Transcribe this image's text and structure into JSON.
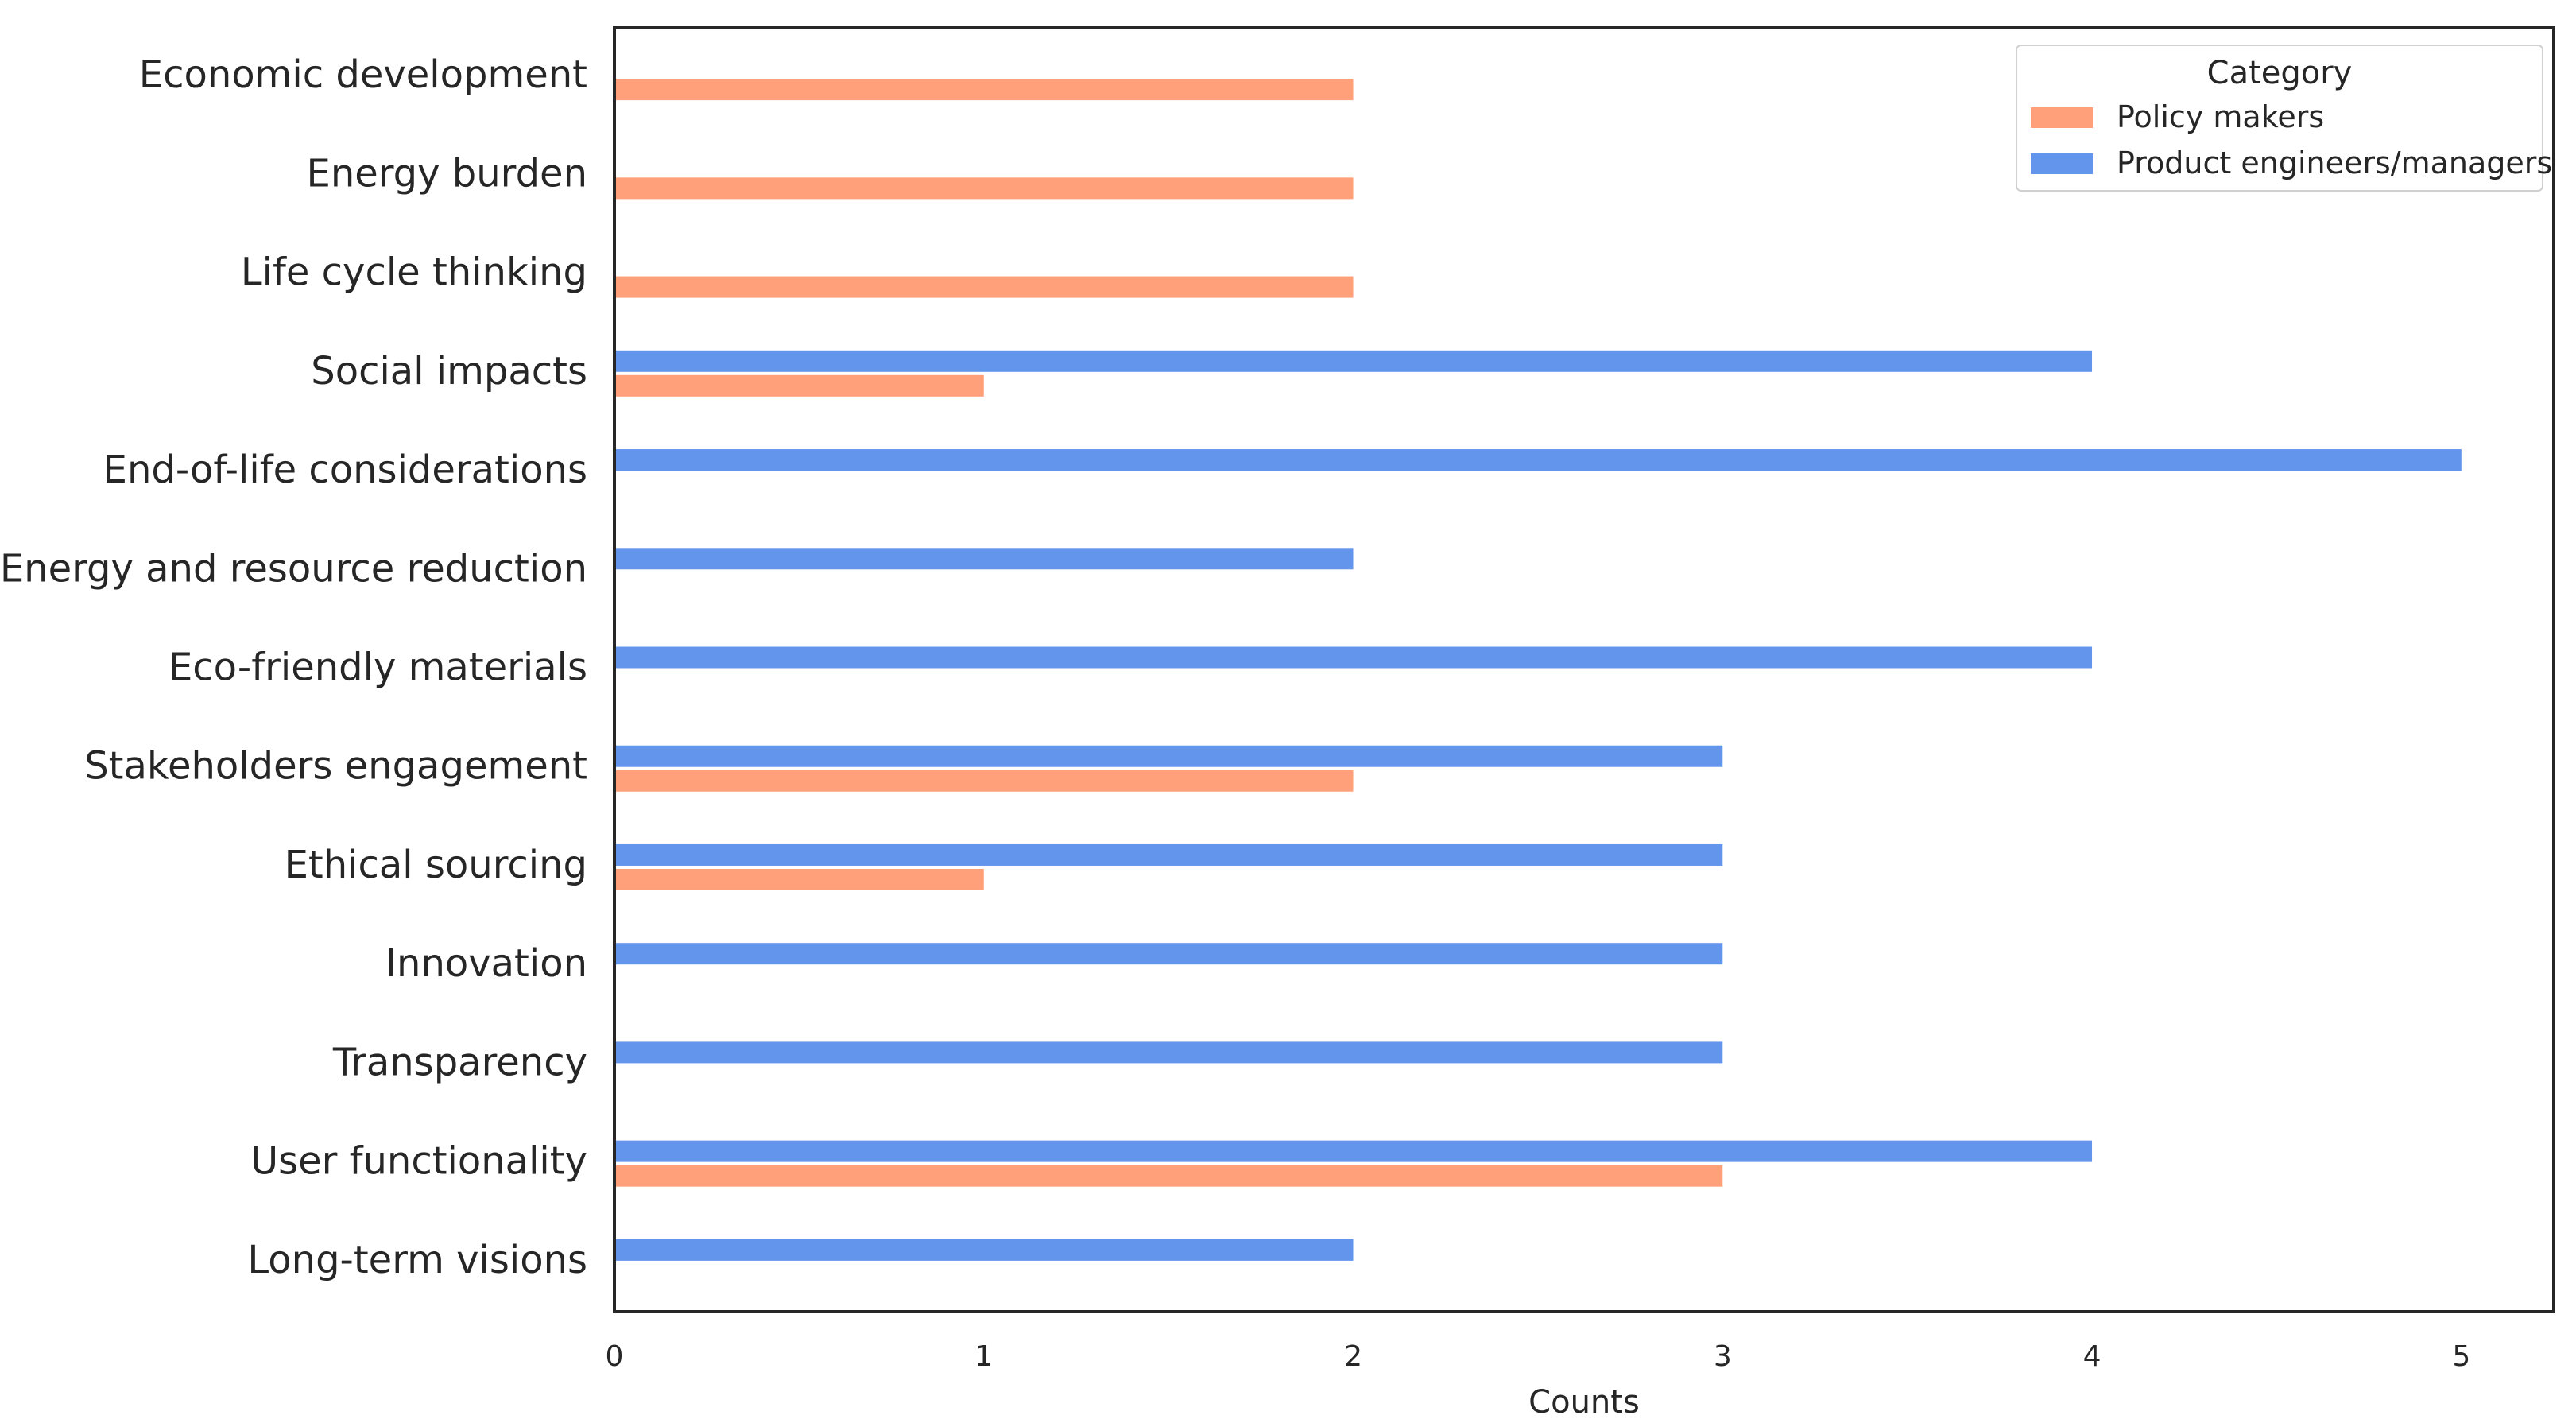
{
  "chart_data": {
    "type": "bar",
    "orientation": "horizontal",
    "categories": [
      "Economic development",
      "Energy burden",
      "Life cycle thinking",
      "Social impacts",
      "End-of-life considerations",
      "Energy and resource reduction",
      "Eco-friendly materials",
      "Stakeholders engagement",
      "Ethical sourcing",
      "Innovation",
      "Transparency",
      "User functionality",
      "Long-term visions"
    ],
    "series": [
      {
        "name": "Product engineers/managers",
        "color": "#6495ED",
        "values": [
          0,
          0,
          0,
          4,
          5,
          2,
          4,
          3,
          3,
          3,
          3,
          4,
          2
        ]
      },
      {
        "name": "Policy makers",
        "color": "#FFA07A",
        "values": [
          2,
          2,
          2,
          1,
          0,
          0,
          0,
          2,
          1,
          0,
          0,
          3,
          0
        ]
      }
    ],
    "xlabel": "Counts",
    "ylabel": "",
    "xlim": [
      0,
      5.25
    ],
    "xticks": [
      0,
      1,
      2,
      3,
      4,
      5
    ],
    "grid": false,
    "legend": {
      "title": "Category",
      "placement": "top-right",
      "entries": [
        {
          "name": "Policy makers",
          "color": "#FFA07A"
        },
        {
          "name": "Product engineers/managers",
          "color": "#6495ED"
        }
      ]
    }
  }
}
